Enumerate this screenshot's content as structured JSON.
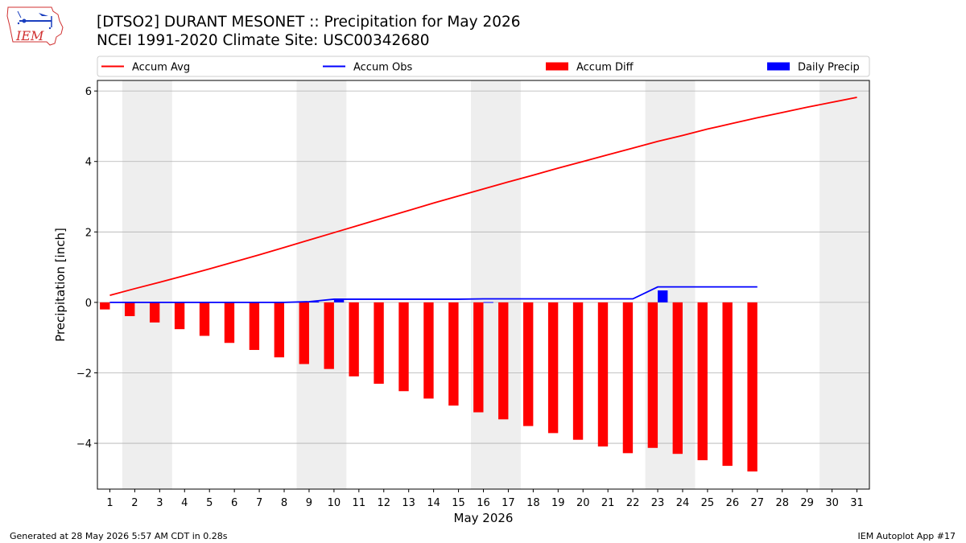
{
  "header": {
    "logo_text": "IEM",
    "title_line1": "[DTSO2] DURANT MESONET :: Precipitation for May 2026",
    "title_line2": "NCEI 1991-2020 Climate Site: USC00342680"
  },
  "footer": {
    "generated": "Generated at 28 May 2026 5:57 AM CDT in 0.28s",
    "app": "IEM Autoplot App #17"
  },
  "colors": {
    "accum_avg": "#ff0000",
    "accum_obs": "#0000ff",
    "accum_diff": "#ff0000",
    "daily_precip": "#0000ff",
    "weekend_shade": "#eeeeee",
    "grid": "#b0b0b0"
  },
  "chart_data": {
    "type": "bar",
    "xlabel": "May 2026",
    "ylabel": "Precipitation [inch]",
    "ylim": [
      -5.3,
      6.3
    ],
    "xlim": [
      0.5,
      31.5
    ],
    "x_ticks": [
      1,
      2,
      3,
      4,
      5,
      6,
      7,
      8,
      9,
      10,
      11,
      12,
      13,
      14,
      15,
      16,
      17,
      18,
      19,
      20,
      21,
      22,
      23,
      24,
      25,
      26,
      27,
      28,
      29,
      30,
      31
    ],
    "y_ticks": [
      -4,
      -2,
      0,
      2,
      4,
      6
    ],
    "y_tick_labels": [
      "−4",
      "−2",
      "0",
      "2",
      "4",
      "6"
    ],
    "grid": "horizontal",
    "legend": {
      "placement": "top",
      "entries": [
        "Accum Avg",
        "Accum Obs",
        "Accum Diff",
        "Daily Precip"
      ]
    },
    "weekend_spans": [
      [
        1.5,
        3.5
      ],
      [
        8.5,
        10.5
      ],
      [
        15.5,
        17.5
      ],
      [
        22.5,
        24.5
      ],
      [
        29.5,
        31.5
      ]
    ],
    "series": [
      {
        "name": "Accum Avg",
        "kind": "line",
        "x": [
          1,
          2,
          3,
          4,
          5,
          6,
          7,
          8,
          9,
          10,
          11,
          12,
          13,
          14,
          15,
          16,
          17,
          18,
          19,
          20,
          21,
          22,
          23,
          24,
          25,
          26,
          27,
          28,
          29,
          30,
          31
        ],
        "values": [
          0.2,
          0.39,
          0.57,
          0.76,
          0.95,
          1.15,
          1.35,
          1.56,
          1.77,
          1.98,
          2.19,
          2.4,
          2.61,
          2.82,
          3.02,
          3.22,
          3.42,
          3.61,
          3.81,
          4.0,
          4.19,
          4.38,
          4.57,
          4.74,
          4.92,
          5.08,
          5.24,
          5.39,
          5.54,
          5.68,
          5.82
        ]
      },
      {
        "name": "Accum Obs",
        "kind": "line",
        "x": [
          1,
          2,
          3,
          4,
          5,
          6,
          7,
          8,
          9,
          10,
          11,
          12,
          13,
          14,
          15,
          16,
          17,
          18,
          19,
          20,
          21,
          22,
          23,
          24,
          25,
          26,
          27
        ],
        "values": [
          0.0,
          0.0,
          0.0,
          0.0,
          0.0,
          0.0,
          0.0,
          0.0,
          0.02,
          0.09,
          0.09,
          0.09,
          0.09,
          0.09,
          0.09,
          0.1,
          0.1,
          0.1,
          0.1,
          0.1,
          0.1,
          0.1,
          0.44,
          0.44,
          0.44,
          0.44,
          0.44
        ]
      },
      {
        "name": "Accum Diff",
        "kind": "bar",
        "x": [
          1,
          2,
          3,
          4,
          5,
          6,
          7,
          8,
          9,
          10,
          11,
          12,
          13,
          14,
          15,
          16,
          17,
          18,
          19,
          20,
          21,
          22,
          23,
          24,
          25,
          26,
          27
        ],
        "values": [
          -0.2,
          -0.39,
          -0.57,
          -0.76,
          -0.95,
          -1.15,
          -1.35,
          -1.56,
          -1.75,
          -1.89,
          -2.1,
          -2.31,
          -2.52,
          -2.73,
          -2.93,
          -3.12,
          -3.32,
          -3.51,
          -3.71,
          -3.9,
          -4.09,
          -4.28,
          -4.13,
          -4.3,
          -4.48,
          -4.64,
          -4.8
        ]
      },
      {
        "name": "Daily Precip",
        "kind": "bar",
        "x": [
          9,
          10,
          16,
          23
        ],
        "values": [
          0.02,
          0.07,
          0.01,
          0.34
        ]
      }
    ]
  }
}
